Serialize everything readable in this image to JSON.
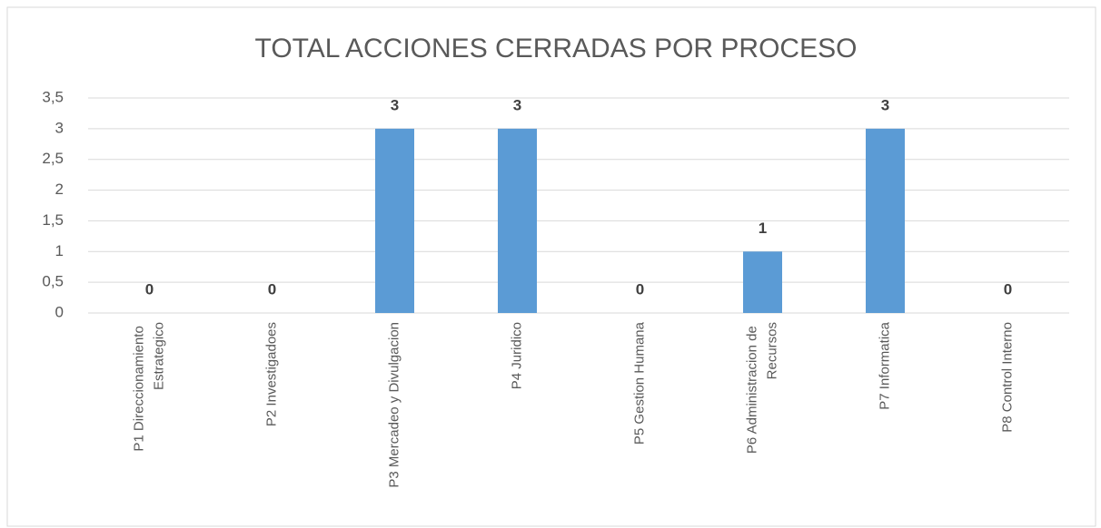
{
  "chart_data": {
    "type": "bar",
    "title": "TOTAL ACCIONES CERRADAS POR PROCESO",
    "categories": [
      "P1 Direccionamiento Estrategico",
      "P2 Investigadoes",
      "P3 Mercadeo y Divulgacion",
      "P4 Juridico",
      "P5 Gestion Humana",
      "P6 Administracion de Recursos",
      "P7 Informatica",
      "P8 Control Interno"
    ],
    "values": [
      0,
      0,
      3,
      3,
      0,
      1,
      3,
      0
    ],
    "color": "#5b9bd5",
    "ylim": [
      0,
      3.5
    ],
    "yticks": [
      0,
      {
        "value": 0.5,
        "label": "0,5"
      },
      1,
      {
        "value": 1.5,
        "label": "1,5"
      },
      2,
      {
        "value": 2.5,
        "label": "2,5"
      },
      3,
      {
        "value": 3.5,
        "label": "3,5"
      }
    ],
    "grid": true
  }
}
